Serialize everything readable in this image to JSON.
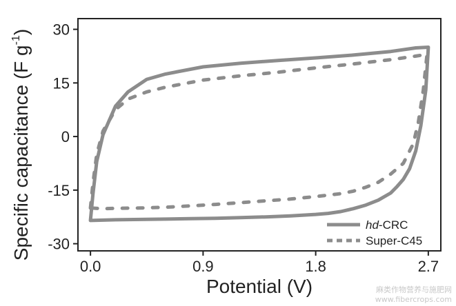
{
  "chart_data": {
    "type": "line",
    "xlabel": "Potential (V)",
    "ylabel": "Specific capacitance (F g⁻¹)",
    "ylabel_main": "Specific capacitance (F g",
    "ylabel_sup": "-1",
    "ylabel_close": ")",
    "xlim": [
      -0.1,
      2.8
    ],
    "ylim": [
      -32,
      33
    ],
    "x_ticks": [
      0.0,
      0.9,
      1.8,
      2.7
    ],
    "x_tick_labels": [
      "0.0",
      "0.9",
      "1.8",
      "2.7"
    ],
    "y_ticks": [
      -30,
      -15,
      0,
      15,
      30
    ],
    "y_tick_labels": [
      "-30",
      "-15",
      "0",
      "15",
      "30"
    ],
    "grid": false,
    "legend_placement": "bottom-right",
    "colors": {
      "series_color": "#8c8c8c",
      "axis_color": "#222222",
      "watermark_color": "#c8c8c8"
    },
    "series": [
      {
        "name": "hd-CRC",
        "name_italic": "hd",
        "name_rest": "-CRC",
        "style": "solid",
        "x": [
          0.0,
          0.02,
          0.05,
          0.1,
          0.2,
          0.3,
          0.45,
          0.6,
          0.9,
          1.2,
          1.5,
          1.8,
          2.1,
          2.4,
          2.6,
          2.7,
          2.68,
          2.64,
          2.6,
          2.55,
          2.5,
          2.45,
          2.4,
          2.3,
          2.2,
          2.1,
          2.0,
          1.9,
          1.8,
          1.6,
          1.4,
          1.2,
          1.0,
          0.8,
          0.6,
          0.4,
          0.2,
          0.1,
          0.0
        ],
        "y": [
          -23.5,
          -16,
          -7,
          0.5,
          8.5,
          12.5,
          16.0,
          17.5,
          19.5,
          20.5,
          21.3,
          22.0,
          22.8,
          23.8,
          24.8,
          25.0,
          13,
          3,
          -4,
          -9,
          -12,
          -14,
          -15.8,
          -17.8,
          -19.2,
          -20.2,
          -21.0,
          -21.5,
          -21.8,
          -22.2,
          -22.5,
          -22.7,
          -22.9,
          -23.0,
          -23.1,
          -23.2,
          -23.3,
          -23.4,
          -23.5
        ]
      },
      {
        "name": "Super-C45",
        "style": "dashed",
        "x": [
          0.0,
          0.02,
          0.05,
          0.1,
          0.2,
          0.3,
          0.45,
          0.6,
          0.9,
          1.2,
          1.5,
          1.8,
          2.1,
          2.4,
          2.6,
          2.69,
          2.66,
          2.62,
          2.58,
          2.5,
          2.4,
          2.3,
          2.2,
          2.1,
          2.0,
          1.8,
          1.6,
          1.4,
          1.2,
          1.0,
          0.8,
          0.6,
          0.4,
          0.2,
          0.1,
          0.0
        ],
        "y": [
          -20.0,
          -13,
          -5,
          1.5,
          7.5,
          10.5,
          12.5,
          13.8,
          15.8,
          17.0,
          18.0,
          19.2,
          20.3,
          21.5,
          22.5,
          23.0,
          13,
          4,
          -2,
          -7.5,
          -10.5,
          -12.8,
          -14.2,
          -15.3,
          -16.0,
          -16.8,
          -17.5,
          -18.0,
          -18.5,
          -19.0,
          -19.4,
          -19.8,
          -20.0,
          -20.1,
          -20.2,
          -20.0
        ]
      }
    ]
  },
  "watermark": {
    "line1": "麻类作物营养与施肥网",
    "line2": "www.fibercrops.com"
  }
}
